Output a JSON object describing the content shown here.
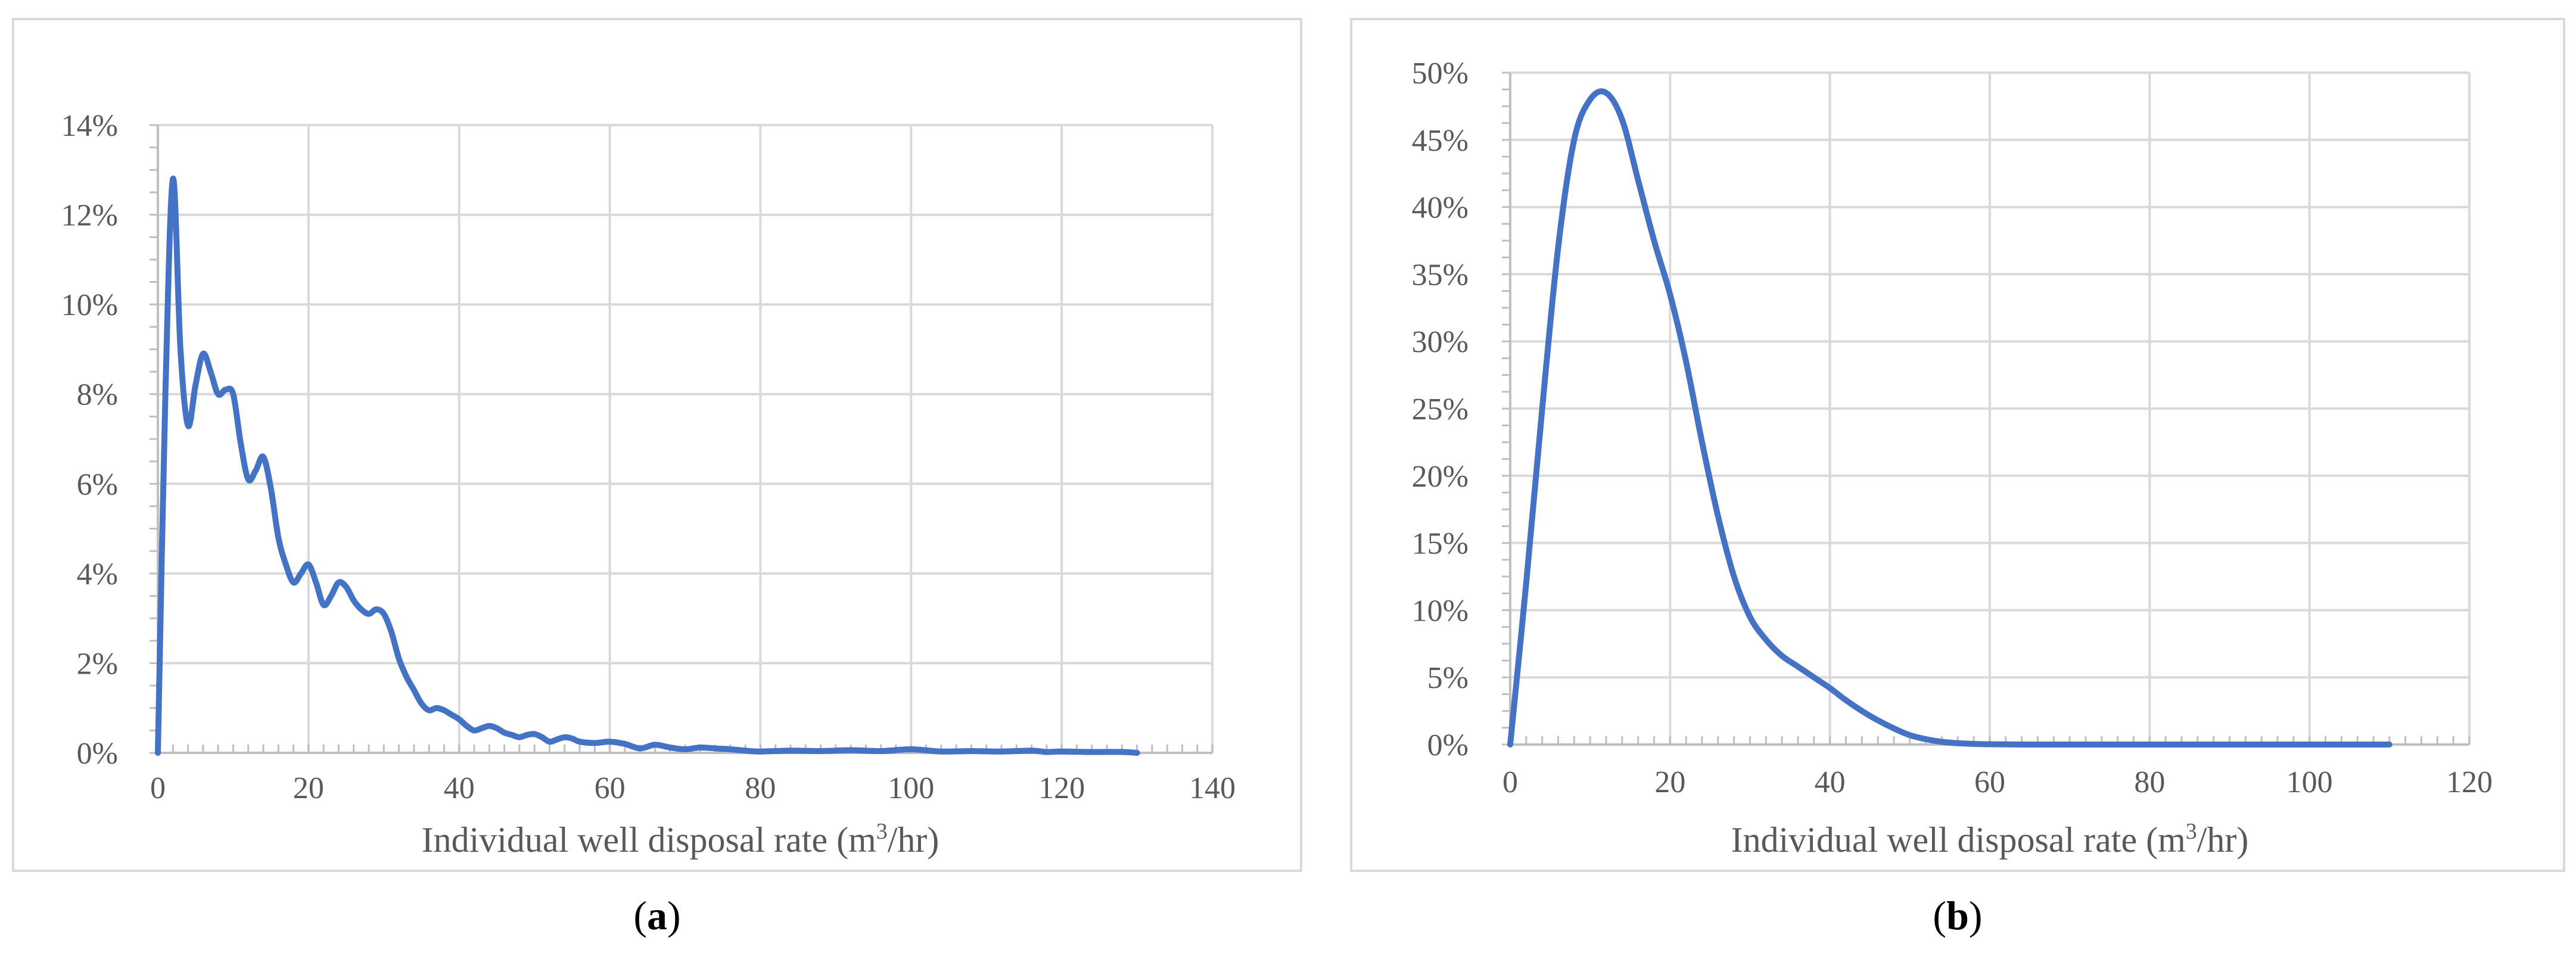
{
  "chart_data": [
    {
      "type": "line",
      "caption_letter": "a",
      "xlabel": "Individual well disposal rate (m",
      "xlabel_sup": "3",
      "xlabel_tail": "/hr)",
      "ylabel": "",
      "xlim": [
        0,
        140
      ],
      "ylim": [
        0,
        14
      ],
      "x_ticks": [
        "0",
        "20",
        "40",
        "60",
        "80",
        "100",
        "120",
        "140"
      ],
      "y_ticks": [
        "0%",
        "2%",
        "4%",
        "6%",
        "8%",
        "10%",
        "12%",
        "14%"
      ],
      "grid": true,
      "legend": "none",
      "series": [
        {
          "color": "#4472c4",
          "x": [
            0,
            1,
            2,
            3,
            4,
            5,
            6,
            7,
            8,
            9,
            10,
            11,
            12,
            13,
            14,
            15,
            16,
            17,
            18,
            19,
            20,
            21,
            22,
            23,
            24,
            25,
            26,
            27,
            28,
            29,
            30,
            31,
            32,
            33,
            34,
            35,
            36,
            37,
            38,
            39,
            40,
            41,
            42,
            43,
            44,
            45,
            46,
            47,
            48,
            49,
            50,
            51,
            52,
            53,
            54,
            55,
            56,
            58,
            60,
            62,
            64,
            66,
            68,
            70,
            72,
            74,
            76,
            78,
            80,
            84,
            88,
            92,
            96,
            100,
            104,
            108,
            112,
            116,
            118,
            120,
            124,
            128,
            130
          ],
          "y": [
            0,
            8.0,
            12.8,
            9.0,
            7.3,
            8.2,
            8.9,
            8.5,
            8.0,
            8.1,
            8.0,
            6.9,
            6.1,
            6.3,
            6.6,
            5.9,
            4.8,
            4.2,
            3.8,
            4.0,
            4.2,
            3.8,
            3.3,
            3.5,
            3.8,
            3.7,
            3.4,
            3.2,
            3.1,
            3.2,
            3.1,
            2.7,
            2.1,
            1.7,
            1.4,
            1.1,
            0.95,
            1.0,
            0.95,
            0.85,
            0.75,
            0.6,
            0.5,
            0.55,
            0.6,
            0.55,
            0.45,
            0.4,
            0.35,
            0.4,
            0.42,
            0.35,
            0.25,
            0.3,
            0.35,
            0.32,
            0.25,
            0.22,
            0.25,
            0.2,
            0.1,
            0.18,
            0.12,
            0.08,
            0.12,
            0.1,
            0.08,
            0.05,
            0.03,
            0.05,
            0.04,
            0.06,
            0.04,
            0.08,
            0.03,
            0.04,
            0.03,
            0.05,
            0.02,
            0.03,
            0.02,
            0.02,
            0.0
          ]
        }
      ]
    },
    {
      "type": "line",
      "caption_letter": "b",
      "xlabel": "Individual well disposal rate (m",
      "xlabel_sup": "3",
      "xlabel_tail": "/hr)",
      "ylabel": "",
      "xlim": [
        0,
        120
      ],
      "ylim": [
        0,
        50
      ],
      "x_ticks": [
        "0",
        "20",
        "40",
        "60",
        "80",
        "100",
        "120"
      ],
      "y_ticks": [
        "0%",
        "5%",
        "10%",
        "15%",
        "20%",
        "25%",
        "30%",
        "35%",
        "40%",
        "45%",
        "50%"
      ],
      "grid": true,
      "legend": "none",
      "series": [
        {
          "color": "#4472c4",
          "x": [
            0,
            2,
            4,
            6,
            8,
            10,
            12,
            14,
            16,
            18,
            20,
            22,
            24,
            26,
            28,
            30,
            32,
            34,
            36,
            38,
            40,
            42,
            44,
            46,
            48,
            50,
            52,
            54,
            56,
            58,
            60,
            65,
            70,
            80,
            90,
            100,
            110
          ],
          "y": [
            0,
            12,
            25,
            37,
            45,
            48,
            48.5,
            46.5,
            42,
            37.5,
            33.5,
            28.5,
            22.5,
            17,
            12.5,
            9.5,
            7.8,
            6.6,
            5.8,
            5.0,
            4.2,
            3.3,
            2.5,
            1.8,
            1.2,
            0.7,
            0.4,
            0.2,
            0.1,
            0.05,
            0.02,
            0.0,
            0.0,
            0.0,
            0.0,
            0.0,
            0.0
          ]
        }
      ]
    }
  ]
}
